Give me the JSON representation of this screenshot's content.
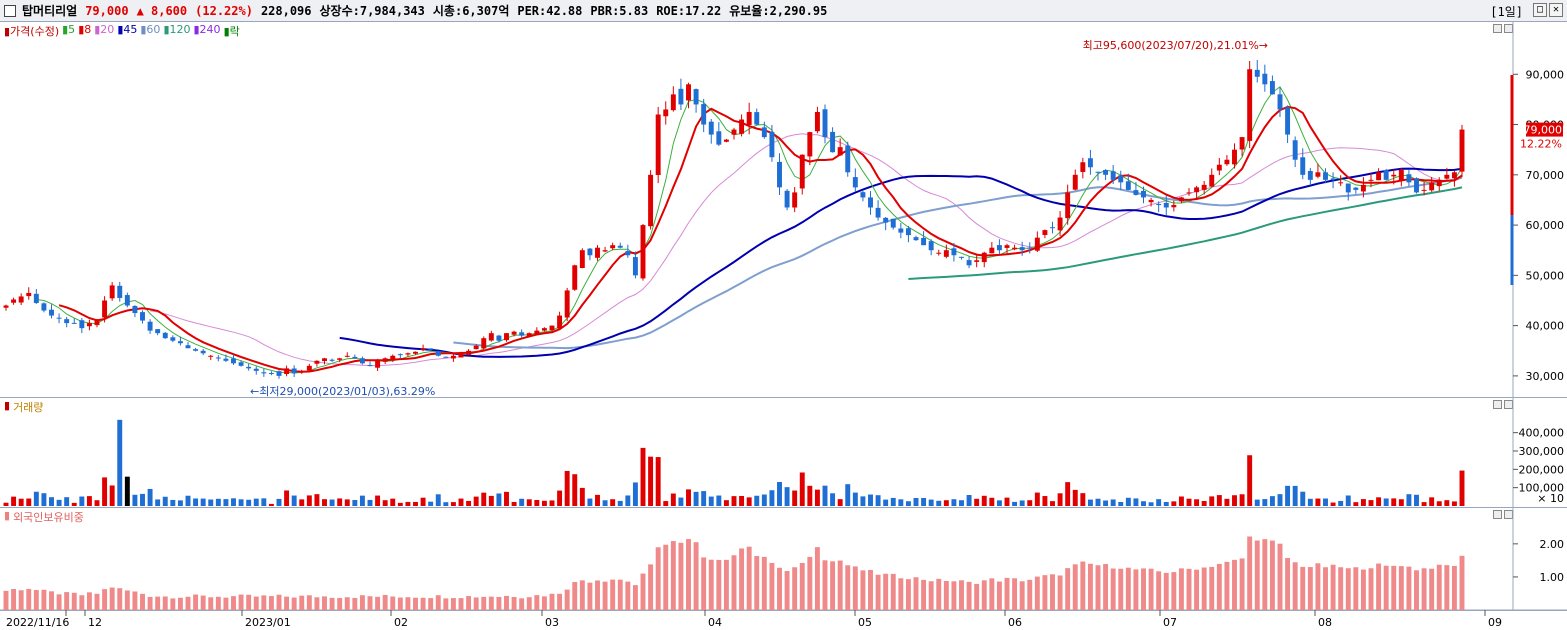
{
  "header": {
    "stock_name": "탑머티리얼",
    "price": "79,000",
    "change": "▲ 8,600",
    "change_pct": "(12.22%)",
    "volume": "228,096",
    "shares": "상장수:7,984,343",
    "market_cap": "시총:6,307억",
    "per": "PER:42.88",
    "pbr": "PBR:5.83",
    "roe": "ROE:17.22",
    "float_ratio": "유보율:2,290.95",
    "period": "[1일]",
    "close_icon": "close-icon",
    "restore_icon": "restore-icon"
  },
  "price_pane": {
    "legend": [
      {
        "text": "가격(수정)",
        "color": "#c00000"
      },
      {
        "text": "5",
        "color": "#2aa52a"
      },
      {
        "text": "8",
        "color": "#e00000"
      },
      {
        "text": "20",
        "color": "#cc66cc"
      },
      {
        "text": "45",
        "color": "#0000b0"
      },
      {
        "text": "60",
        "color": "#6f8fbf"
      },
      {
        "text": "120",
        "color": "#2a9a7a"
      },
      {
        "text": "240",
        "color": "#8a2be2"
      },
      {
        "text": "락",
        "color": "#008000"
      }
    ],
    "y_ticks": [
      "90,000",
      "80,000",
      "70,000",
      "60,000",
      "50,000",
      "40,000",
      "30,000"
    ],
    "high_annotation": "최고95,600(2023/07/20),21.01%→",
    "low_annotation": "←최저29,000(2023/01/03),63.29%",
    "current_price_tag": "79,000",
    "current_pct_tag": "12.22%"
  },
  "volume_pane": {
    "title": "거래량",
    "y_ticks": [
      "400,000",
      "300,000",
      "200,000",
      "100,000"
    ],
    "unit": "× 10"
  },
  "foreign_pane": {
    "title": "외국인보유비중",
    "y_ticks": [
      "2.00",
      "1.00"
    ]
  },
  "x_axis": {
    "labels": [
      "2022/11/16",
      "12",
      "2023/01",
      "02",
      "03",
      "04",
      "05",
      "06",
      "07",
      "08",
      "09"
    ]
  },
  "chart_data": {
    "type": "candlestick",
    "price_range": [
      26000,
      100000
    ],
    "closes": [
      44000,
      45200,
      45800,
      46500,
      44500,
      43000,
      42000,
      41500,
      40500,
      40500,
      39500,
      40500,
      41000,
      45000,
      48000,
      45500,
      44000,
      42500,
      41000,
      39000,
      38500,
      37500,
      37000,
      36500,
      35500,
      35000,
      34500,
      34000,
      33500,
      33000,
      32500,
      32000,
      31500,
      31000,
      30500,
      30500,
      30000,
      31500,
      30500,
      31000,
      32000,
      33000,
      33500,
      33000,
      33500,
      34000,
      33500,
      32500,
      32000,
      33000,
      33500,
      34000,
      34200,
      34500,
      34800,
      35500,
      35200,
      34000,
      33800,
      34000,
      34600,
      35000,
      36000,
      37500,
      38500,
      37000,
      38500,
      38800,
      38000,
      38500,
      39000,
      39500,
      40000,
      42000,
      47000,
      52000,
      55000,
      54000,
      55500,
      55000,
      56000,
      55500,
      54000,
      50000,
      60000,
      70000,
      82000,
      83000,
      86000,
      84000,
      88000,
      84000,
      80000,
      78000,
      76000,
      77000,
      79000,
      81000,
      82500,
      80000,
      77500,
      73500,
      67500,
      63500,
      66500,
      74000,
      78500,
      82500,
      77500,
      74500,
      75500,
      70500,
      67500,
      65500,
      63500,
      61500,
      60500,
      59500,
      58500,
      58000,
      57000,
      56000,
      55000,
      54500,
      55000,
      54000,
      53500,
      52000,
      53000,
      54500,
      55500,
      55000,
      56000,
      55500,
      55000,
      55500,
      57500,
      59000,
      59500,
      61500,
      66500,
      70000,
      72500,
      71500,
      70500,
      70000,
      69000,
      68500,
      67000,
      66000,
      65500,
      65000,
      64000,
      63500,
      64000,
      65500,
      66500,
      67500,
      68000,
      70000,
      72000,
      73000,
      75000,
      77500,
      91000,
      89500,
      88000,
      86000,
      83000,
      78000,
      73000,
      70000,
      69000,
      70500,
      69000,
      69000,
      68500,
      66500,
      67000,
      68000,
      69000,
      70500,
      69000,
      70000,
      71000,
      68500,
      66500,
      67000,
      68500,
      69000,
      70000,
      70500,
      79000
    ],
    "volume_range": [
      0,
      480000
    ],
    "foreign_ratio_range": [
      0,
      2.6
    ]
  }
}
